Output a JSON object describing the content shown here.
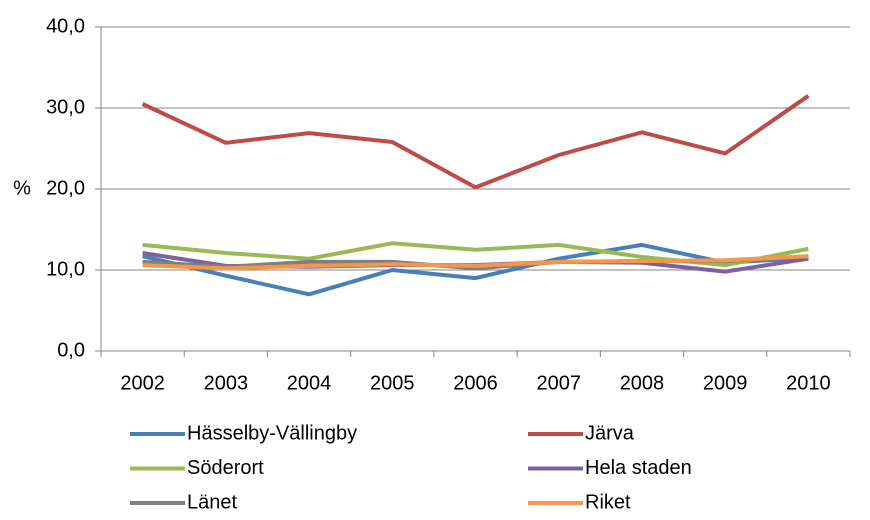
{
  "chart_data": {
    "type": "line",
    "ylabel": "%",
    "categories": [
      "2002",
      "2003",
      "2004",
      "2005",
      "2006",
      "2007",
      "2008",
      "2009",
      "2010"
    ],
    "series": [
      {
        "name": "Hässelby-Vällingby",
        "color": "#4a7ebb",
        "values": [
          11.7,
          9.3,
          7.0,
          10.0,
          9.0,
          11.4,
          13.1,
          10.9,
          11.5
        ]
      },
      {
        "name": "Järva",
        "color": "#be4b48",
        "values": [
          30.5,
          25.7,
          26.9,
          25.8,
          20.2,
          24.2,
          27.0,
          24.4,
          31.5
        ]
      },
      {
        "name": "Söderort",
        "color": "#98b954",
        "values": [
          13.1,
          12.1,
          11.4,
          13.3,
          12.5,
          13.1,
          11.6,
          10.6,
          12.6
        ]
      },
      {
        "name": "Hela staden",
        "color": "#7d60a0",
        "values": [
          12.1,
          10.5,
          10.4,
          10.6,
          10.6,
          11.0,
          10.9,
          9.8,
          11.4
        ]
      },
      {
        "name": "Länet",
        "color": "#7f7f7f",
        "values": [
          11.0,
          10.4,
          11.0,
          11.0,
          10.2,
          11.0,
          11.1,
          11.1,
          11.7
        ]
      },
      {
        "name": "Riket",
        "color": "#f79646",
        "values": [
          10.6,
          10.2,
          10.5,
          10.7,
          10.5,
          11.0,
          11.1,
          11.2,
          11.7
        ]
      }
    ],
    "ylim": [
      0,
      40
    ],
    "yticks": [
      {
        "value": 0,
        "label": "0,0"
      },
      {
        "value": 10,
        "label": "10,0"
      },
      {
        "value": 20,
        "label": "20,0"
      },
      {
        "value": 30,
        "label": "30,0"
      },
      {
        "value": 40,
        "label": "40,0"
      }
    ],
    "grid": true
  }
}
